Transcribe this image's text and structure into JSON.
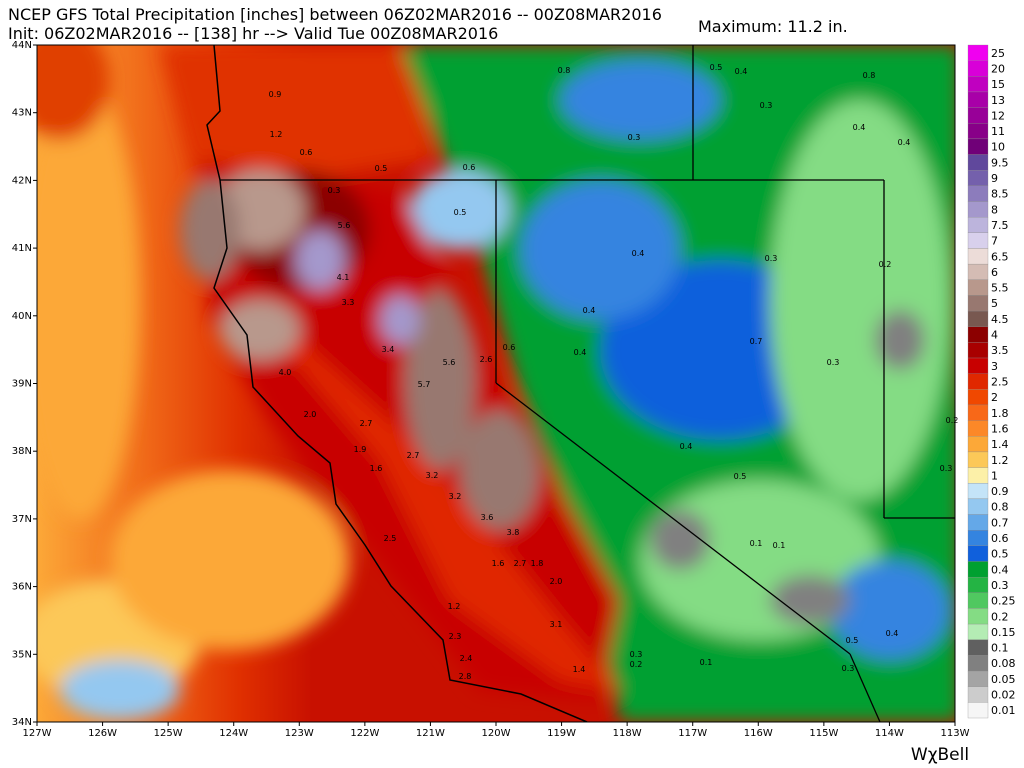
{
  "header": {
    "line1": "NCEP GFS Total Precipitation [inches] between 06Z02MAR2016 -- 00Z08MAR2016",
    "line2": "Init: 06Z02MAR2016 -- [138] hr --> Valid Tue 00Z08MAR2016",
    "maximum": "Maximum: 11.2 in."
  },
  "axes": {
    "lat_labels": [
      "44N",
      "43N",
      "42N",
      "41N",
      "40N",
      "39N",
      "38N",
      "37N",
      "36N",
      "35N",
      "34N"
    ],
    "lon_labels": [
      "127W",
      "126W",
      "125W",
      "124W",
      "123W",
      "122W",
      "121W",
      "120W",
      "119W",
      "118W",
      "117W",
      "116W",
      "115W",
      "114W",
      "113W"
    ]
  },
  "legend": {
    "levels": [
      {
        "label": "25",
        "color": "#f000f0"
      },
      {
        "label": "20",
        "color": "#d800d8"
      },
      {
        "label": "15",
        "color": "#c000c0"
      },
      {
        "label": "13",
        "color": "#a800a8"
      },
      {
        "label": "12",
        "color": "#980098"
      },
      {
        "label": "11",
        "color": "#880088"
      },
      {
        "label": "10",
        "color": "#700078"
      },
      {
        "label": "9.5",
        "color": "#60489c"
      },
      {
        "label": "9",
        "color": "#7460ac"
      },
      {
        "label": "8.5",
        "color": "#8c7cbc"
      },
      {
        "label": "8",
        "color": "#a498cc"
      },
      {
        "label": "7.5",
        "color": "#bcb4dc"
      },
      {
        "label": "7",
        "color": "#d8d0ec"
      },
      {
        "label": "6.5",
        "color": "#ecdcd8"
      },
      {
        "label": "6",
        "color": "#d4bcb4"
      },
      {
        "label": "5.5",
        "color": "#b8988c"
      },
      {
        "label": "5",
        "color": "#987870"
      },
      {
        "label": "4.5",
        "color": "#785850"
      },
      {
        "label": "4",
        "color": "#8c0000"
      },
      {
        "label": "3.5",
        "color": "#a80000"
      },
      {
        "label": "3",
        "color": "#c80000"
      },
      {
        "label": "2.5",
        "color": "#e02800"
      },
      {
        "label": "2",
        "color": "#f04800"
      },
      {
        "label": "1.8",
        "color": "#f86818"
      },
      {
        "label": "1.6",
        "color": "#fc8828"
      },
      {
        "label": "1.4",
        "color": "#fca838"
      },
      {
        "label": "1.2",
        "color": "#fcc858"
      },
      {
        "label": "1",
        "color": "#fcf0a8"
      },
      {
        "label": "0.9",
        "color": "#c4e4f8"
      },
      {
        "label": "0.8",
        "color": "#94c8f0"
      },
      {
        "label": "0.7",
        "color": "#64a8e8"
      },
      {
        "label": "0.6",
        "color": "#3484e0"
      },
      {
        "label": "0.5",
        "color": "#1060dc"
      },
      {
        "label": "0.4",
        "color": "#00a030"
      },
      {
        "label": "0.3",
        "color": "#24b444"
      },
      {
        "label": "0.25",
        "color": "#50c860"
      },
      {
        "label": "0.2",
        "color": "#84dc84"
      },
      {
        "label": "0.15",
        "color": "#b4ecb4"
      },
      {
        "label": "0.1",
        "color": "#606060"
      },
      {
        "label": "0.08",
        "color": "#808080"
      },
      {
        "label": "0.05",
        "color": "#a4a4a4"
      },
      {
        "label": "0.02",
        "color": "#cccccc"
      },
      {
        "label": "0.01",
        "color": "#f6f6f6"
      }
    ]
  },
  "map_labels": [
    "0.9",
    "1.2",
    "0.6",
    "0.5",
    "0.6",
    "0.3",
    "0.5",
    "5.6",
    "4.1",
    "3.3",
    "3.4",
    "5.6",
    "5.7",
    "2.6",
    "0.6",
    "4.0",
    "2.0",
    "2.7",
    "1.9",
    "1.6",
    "2.7",
    "3.2",
    "3.2",
    "3.6",
    "3.8",
    "2.5",
    "1.6",
    "2.7",
    "1.8",
    "2.0",
    "1.2",
    "3.1",
    "2.3",
    "2.4",
    "2.8",
    "1.4",
    "0.8",
    "0.5",
    "0.4",
    "0.8",
    "0.3",
    "0.4",
    "0.4",
    "0.3",
    "0.4",
    "0.3",
    "0.2",
    "0.4",
    "0.4",
    "0.7",
    "0.3",
    "0.4",
    "0.5",
    "0.1",
    "0.1",
    "0.2",
    "0.3",
    "0.4",
    "0.5",
    "0.3",
    "0.1",
    "0.3",
    "0.2"
  ],
  "brand": "WχBell"
}
